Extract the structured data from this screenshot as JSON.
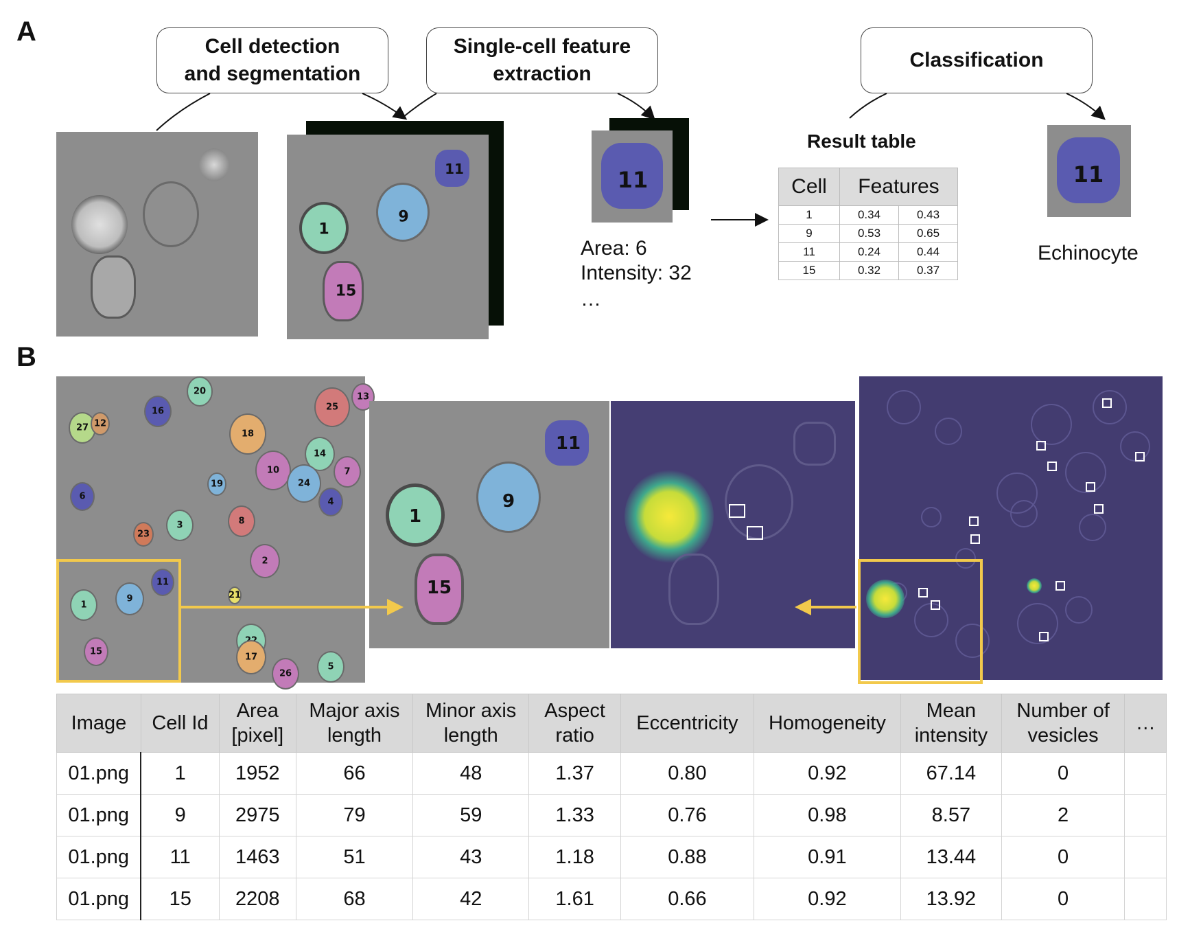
{
  "panel_a": {
    "letter": "A",
    "steps": [
      {
        "id": "seg",
        "label_line1": "Cell detection",
        "label_line2": "and segmentation"
      },
      {
        "id": "feat",
        "label_line1": "Single-cell feature",
        "label_line2": "extraction"
      },
      {
        "id": "cls",
        "label_line1": "Classification",
        "label_line2": ""
      }
    ],
    "segmented_labels": [
      "1",
      "9",
      "11",
      "15"
    ],
    "crop_label": "11",
    "features": {
      "area": "Area: 6",
      "intensity": "Intensity: 32",
      "ellipsis": "…"
    },
    "result_table": {
      "title": "Result table",
      "headers": [
        "Cell",
        "Features"
      ],
      "rows": [
        [
          "1",
          "0.34",
          "0.43"
        ],
        [
          "9",
          "0.53",
          "0.65"
        ],
        [
          "11",
          "0.24",
          "0.44"
        ],
        [
          "15",
          "0.32",
          "0.37"
        ]
      ]
    },
    "class_label": "11",
    "class_name": "Echinocyte"
  },
  "panel_b": {
    "letter": "B",
    "overview_labels": [
      "16",
      "20",
      "25",
      "13",
      "27",
      "12",
      "18",
      "14",
      "10",
      "7",
      "19",
      "24",
      "6",
      "4",
      "23",
      "3",
      "8",
      "11",
      "1",
      "9",
      "15",
      "21",
      "2",
      "22",
      "17",
      "26",
      "5"
    ],
    "zoom_labels": [
      "1",
      "9",
      "11",
      "15"
    ],
    "table": {
      "headers": [
        [
          "Image"
        ],
        [
          "Cell Id"
        ],
        [
          "Area",
          "[pixel]"
        ],
        [
          "Major axis",
          "length"
        ],
        [
          "Minor axis",
          "length"
        ],
        [
          "Aspect",
          "ratio"
        ],
        [
          "Eccentricity"
        ],
        [
          "Homogeneity"
        ],
        [
          "Mean",
          "intensity"
        ],
        [
          "Number of",
          "vesicles"
        ],
        [
          "…"
        ]
      ],
      "rows": [
        [
          "01.png",
          "1",
          "1952",
          "66",
          "48",
          "1.37",
          "0.80",
          "0.92",
          "67.14",
          "0",
          ""
        ],
        [
          "01.png",
          "9",
          "2975",
          "79",
          "59",
          "1.33",
          "0.76",
          "0.98",
          "8.57",
          "2",
          ""
        ],
        [
          "01.png",
          "11",
          "1463",
          "51",
          "43",
          "1.18",
          "0.88",
          "0.91",
          "13.44",
          "0",
          ""
        ],
        [
          "01.png",
          "15",
          "2208",
          "68",
          "42",
          "1.61",
          "0.66",
          "0.92",
          "13.92",
          "0",
          ""
        ]
      ]
    }
  },
  "colors": {
    "teal_cell": "#8fd3b5",
    "blue_cell": "#7fb3d9",
    "purple_cell": "#5a5bb0",
    "magenta_cell": "#c27bb8",
    "highlight": "#f2c94c",
    "heatmap_bg": "#453e73",
    "heat_spot": "#f6e93a"
  }
}
